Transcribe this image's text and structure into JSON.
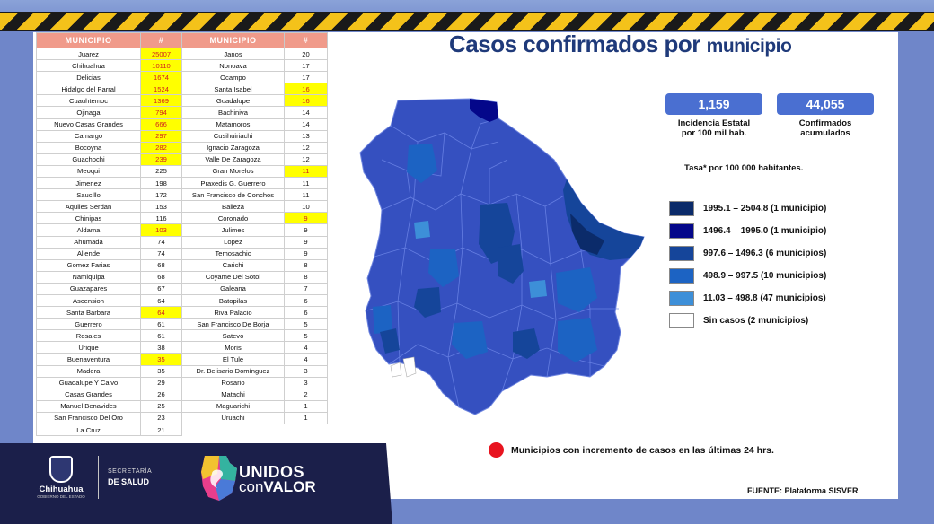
{
  "table_headers": {
    "municipio": "MUNICIPIO",
    "count": "#"
  },
  "left_table": [
    {
      "m": "Juarez",
      "n": "25007",
      "hl": true
    },
    {
      "m": "Chihuahua",
      "n": "10110",
      "hl": true
    },
    {
      "m": "Delicias",
      "n": "1674",
      "hl": true
    },
    {
      "m": "Hidalgo del Parral",
      "n": "1524",
      "hl": true
    },
    {
      "m": "Cuauhtemoc",
      "n": "1369",
      "hl": true
    },
    {
      "m": "Ojinaga",
      "n": "794",
      "hl": true
    },
    {
      "m": "Nuevo Casas Grandes",
      "n": "666",
      "hl": true
    },
    {
      "m": "Camargo",
      "n": "297",
      "hl": true
    },
    {
      "m": "Bocoyna",
      "n": "282",
      "hl": true
    },
    {
      "m": "Guachochi",
      "n": "239",
      "hl": true
    },
    {
      "m": "Meoqui",
      "n": "225",
      "hl": false
    },
    {
      "m": "Jimenez",
      "n": "198",
      "hl": false
    },
    {
      "m": "Saucillo",
      "n": "172",
      "hl": false
    },
    {
      "m": "Aquiles Serdan",
      "n": "153",
      "hl": false
    },
    {
      "m": "Chinipas",
      "n": "116",
      "hl": false
    },
    {
      "m": "Aldama",
      "n": "103",
      "hl": true
    },
    {
      "m": "Ahumada",
      "n": "74",
      "hl": false
    },
    {
      "m": "Allende",
      "n": "74",
      "hl": false
    },
    {
      "m": "Gomez Farias",
      "n": "68",
      "hl": false
    },
    {
      "m": "Namiquipa",
      "n": "68",
      "hl": false
    },
    {
      "m": "Guazapares",
      "n": "67",
      "hl": false
    },
    {
      "m": "Ascension",
      "n": "64",
      "hl": false
    },
    {
      "m": "Santa Barbara",
      "n": "64",
      "hl": true
    },
    {
      "m": "Guerrero",
      "n": "61",
      "hl": false
    },
    {
      "m": "Rosales",
      "n": "61",
      "hl": false
    },
    {
      "m": "Urique",
      "n": "38",
      "hl": false
    },
    {
      "m": "Buenaventura",
      "n": "35",
      "hl": true
    },
    {
      "m": "Madera",
      "n": "35",
      "hl": false
    },
    {
      "m": "Guadalupe Y Calvo",
      "n": "29",
      "hl": false
    },
    {
      "m": "Casas Grandes",
      "n": "26",
      "hl": false
    },
    {
      "m": "Manuel Benavides",
      "n": "25",
      "hl": false
    },
    {
      "m": "San Francisco Del Oro",
      "n": "23",
      "hl": false
    },
    {
      "m": "La Cruz",
      "n": "21",
      "hl": false
    }
  ],
  "right_table": [
    {
      "m": "Janos",
      "n": "20",
      "hl": false
    },
    {
      "m": "Nonoava",
      "n": "17",
      "hl": false
    },
    {
      "m": "Ocampo",
      "n": "17",
      "hl": false
    },
    {
      "m": "Santa Isabel",
      "n": "16",
      "hl": true
    },
    {
      "m": "Guadalupe",
      "n": "16",
      "hl": true
    },
    {
      "m": "Bachiniva",
      "n": "14",
      "hl": false
    },
    {
      "m": "Matamoros",
      "n": "14",
      "hl": false
    },
    {
      "m": "Cusihuiriachi",
      "n": "13",
      "hl": false
    },
    {
      "m": "Ignacio Zaragoza",
      "n": "12",
      "hl": false
    },
    {
      "m": "Valle De Zaragoza",
      "n": "12",
      "hl": false
    },
    {
      "m": "Gran Morelos",
      "n": "11",
      "hl": true
    },
    {
      "m": "Praxedis G. Guerrero",
      "n": "11",
      "hl": false
    },
    {
      "m": "San Francisco de Conchos",
      "n": "11",
      "hl": false
    },
    {
      "m": "Balleza",
      "n": "10",
      "hl": false
    },
    {
      "m": "Coronado",
      "n": "9",
      "hl": true
    },
    {
      "m": "Julimes",
      "n": "9",
      "hl": false
    },
    {
      "m": "Lopez",
      "n": "9",
      "hl": false
    },
    {
      "m": "Temosachic",
      "n": "9",
      "hl": false
    },
    {
      "m": "Carichi",
      "n": "8",
      "hl": false
    },
    {
      "m": "Coyame Del Sotol",
      "n": "8",
      "hl": false
    },
    {
      "m": "Galeana",
      "n": "7",
      "hl": false
    },
    {
      "m": "Batopilas",
      "n": "6",
      "hl": false
    },
    {
      "m": "Riva Palacio",
      "n": "6",
      "hl": false
    },
    {
      "m": "San Francisco De Borja",
      "n": "5",
      "hl": false
    },
    {
      "m": "Satevo",
      "n": "5",
      "hl": false
    },
    {
      "m": "Moris",
      "n": "4",
      "hl": false
    },
    {
      "m": "El Tule",
      "n": "4",
      "hl": false
    },
    {
      "m": "Dr. Belisario Domínguez",
      "n": "3",
      "hl": false
    },
    {
      "m": "Rosario",
      "n": "3",
      "hl": false
    },
    {
      "m": "Matachi",
      "n": "2",
      "hl": false
    },
    {
      "m": "Maguarichi",
      "n": "1",
      "hl": false
    },
    {
      "m": "Uruachi",
      "n": "1",
      "hl": false
    }
  ],
  "title_main": "Casos confirmados por",
  "title_small": "municipio",
  "stats": {
    "incidence_value": "1,159",
    "incidence_caption_1": "Incidencia Estatal",
    "incidence_caption_2": "por 100 mil hab.",
    "confirmed_value": "44,055",
    "confirmed_caption_1": "Confirmados",
    "confirmed_caption_2": "acumulados"
  },
  "rate_note": "Tasa* por 100 000 habitantes.",
  "legend": [
    {
      "label": "1995.1 – 2504.8 (1 municipio)",
      "color": "#0b2b6a"
    },
    {
      "label": "1496.4 – 1995.0 (1 municipio)",
      "color": "#04078a"
    },
    {
      "label": "997.6 – 1496.3 (6 municipios)",
      "color": "#15459a"
    },
    {
      "label": "498.9 – 997.5 (10 municipios)",
      "color": "#1c63c3"
    },
    {
      "label": "11.03 – 498.8 (47 municipios)",
      "color": "#3d8fd8"
    },
    {
      "label": "Sin casos (2 municipios)",
      "color": "#ffffff"
    }
  ],
  "increment_note": "Municipios con incremento de casos en las últimas 24 hrs.",
  "source": "FUENTE: Plataforma SISVER",
  "footer": {
    "gov_name": "Chihuahua",
    "gov_sub": "GOBIERNO DEL ESTADO",
    "secretaria": "SECRETARÍA",
    "salud": "DE SALUD",
    "unidos": "UNIDOS",
    "con": "con",
    "valor": "VALOR"
  },
  "colors": {
    "header_salmon": "#f09a8a",
    "highlight_yellow": "#ffff00",
    "highlight_red_text": "#d21f1f",
    "map_base": "#3550c0",
    "title_blue": "#1f3a7a",
    "footer_navy": "#1b1f4a"
  }
}
